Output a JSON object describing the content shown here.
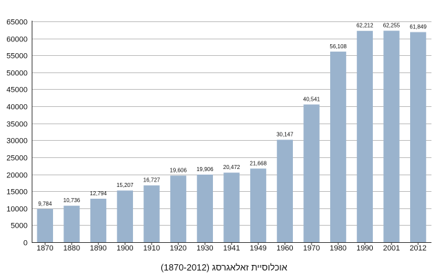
{
  "chart_data": {
    "type": "bar",
    "title": "",
    "xlabel": "",
    "ylabel": "",
    "categories": [
      "1870",
      "1880",
      "1890",
      "1900",
      "1910",
      "1920",
      "1930",
      "1941",
      "1949",
      "1960",
      "1970",
      "1980",
      "1990",
      "2001",
      "2012"
    ],
    "values": [
      9784,
      10736,
      12794,
      15207,
      16727,
      19606,
      19906,
      20472,
      21668,
      30147,
      40541,
      56108,
      62212,
      62255,
      61849
    ],
    "data_labels": [
      "9,784",
      "10,736",
      "12,794",
      "15,207",
      "16,727",
      "19,606",
      "19,906",
      "20,472",
      "21,668",
      "30,147",
      "40,541",
      "56,108",
      "62,212",
      "62,255",
      "61,849"
    ],
    "ylim": [
      0,
      65000
    ],
    "yticks": [
      0,
      5000,
      10000,
      15000,
      20000,
      25000,
      30000,
      35000,
      40000,
      45000,
      50000,
      55000,
      60000,
      65000
    ],
    "grid": true,
    "bar_color": "#9ab3cd",
    "grid_color": "#bbbbbb",
    "axis_color": "#333333",
    "caption": "אוכלוסיית זאלאגרסג (1870-2012)"
  }
}
